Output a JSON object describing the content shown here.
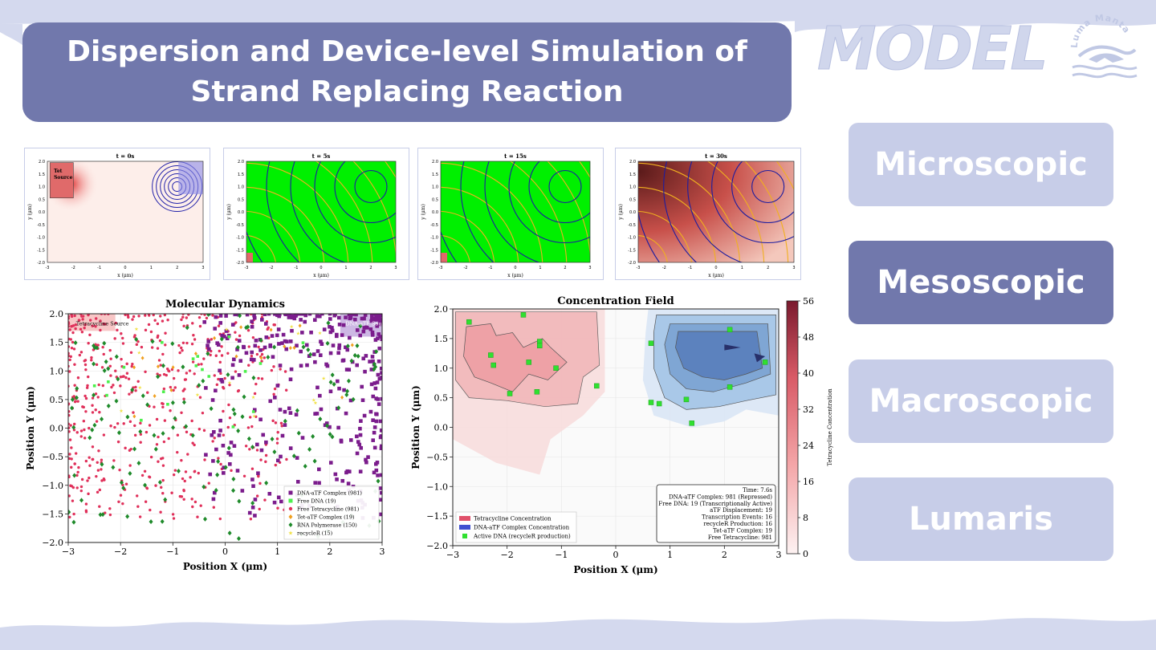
{
  "slide": {
    "title": "Dispersion and Device-level Simulation of Strand Replacing Reaction",
    "brand_word": "MODEL",
    "logo_text": "Luma Manta"
  },
  "nav": [
    {
      "label": "Microscopic",
      "active": false
    },
    {
      "label": "Mesoscopic",
      "active": true
    },
    {
      "label": "Macroscopic",
      "active": false
    },
    {
      "label": "Lumaris",
      "active": false
    }
  ],
  "colors": {
    "accent": "#7178ac",
    "accent_light": "#c7cde8",
    "wave": "#d4d9ee",
    "field_green": "#00f000",
    "contour_blue": "#1c1ca0",
    "contour_orange": "#f0b020"
  },
  "snapshots": [
    {
      "title": "t = 0s",
      "xlabel": "x (μm)",
      "ylabel": "y (μm)",
      "state": "initial",
      "tet_label": "Tet Source"
    },
    {
      "title": "t = 5s",
      "xlabel": "x (μm)",
      "ylabel": "y (μm)",
      "state": "green"
    },
    {
      "title": "t = 15s",
      "xlabel": "x (μm)",
      "ylabel": "y (μm)",
      "state": "green"
    },
    {
      "title": "t = 30s",
      "xlabel": "x (μm)",
      "ylabel": "y (μm)",
      "state": "red"
    }
  ],
  "snapshot_axes": {
    "xticks": [
      "-3",
      "-2",
      "-1",
      "0",
      "1",
      "2",
      "3"
    ],
    "yticks": [
      "2.0",
      "1.5",
      "1.0",
      "0.5",
      "0.0",
      "-0.5",
      "-1.0",
      "-1.5",
      "-2.0"
    ]
  },
  "chart_data": [
    {
      "type": "scatter",
      "title": "Molecular Dynamics",
      "xlabel": "Position X (μm)",
      "ylabel": "Position Y (μm)",
      "xlim": [
        -3,
        3
      ],
      "ylim": [
        -2,
        2
      ],
      "xticks": [
        "−3",
        "−2",
        "−1",
        "0",
        "1",
        "2",
        "3"
      ],
      "yticks": [
        "2.0",
        "1.5",
        "1.0",
        "0.5",
        "0.0",
        "−0.5",
        "−1.0",
        "−1.5",
        "−2.0"
      ],
      "source_labels": [
        "Tetracycline Source",
        "DNA-aTF Source"
      ],
      "legend_position": "bottom-right",
      "series": [
        {
          "name": "DNA-aTF Complex (981)",
          "color": "#7b1c8c",
          "marker": "square",
          "count": 981
        },
        {
          "name": "Free DNA (19)",
          "color": "#4cf04c",
          "marker": "square",
          "count": 19
        },
        {
          "name": "Free Tetracycline (981)",
          "color": "#e0305a",
          "marker": "circle",
          "count": 981
        },
        {
          "name": "Tet-aTF Complex (19)",
          "color": "#f0a020",
          "marker": "diamond",
          "count": 19
        },
        {
          "name": "RNA Polymerase (150)",
          "color": "#1e8a2a",
          "marker": "diamond",
          "count": 150
        },
        {
          "name": "recycleR (15)",
          "color": "#f0e040",
          "marker": "star",
          "count": 15
        }
      ]
    },
    {
      "type": "heatmap",
      "title": "Concentration Field",
      "xlabel": "Position X (μm)",
      "ylabel": "Position Y (μm)",
      "xlim": [
        -3,
        3
      ],
      "ylim": [
        -2,
        2
      ],
      "xticks": [
        "−3",
        "−2",
        "−1",
        "0",
        "1",
        "2",
        "3"
      ],
      "yticks": [
        "2.0",
        "1.5",
        "1.0",
        "0.5",
        "0.0",
        "−0.5",
        "−1.0",
        "−1.5",
        "−2.0"
      ],
      "colorbar": {
        "label": "Tetracycline Concentration",
        "ticks": [
          "56",
          "48",
          "40",
          "32",
          "24",
          "16",
          "8",
          "0"
        ],
        "range": [
          0,
          56
        ]
      },
      "legend": [
        {
          "name": "Tetracycline Concentration",
          "color": "#e0506a"
        },
        {
          "name": "DNA-aTF Complex Concentration",
          "color": "#4050d0"
        },
        {
          "name": "Active DNA (recycleR production)",
          "color": "#30e030"
        }
      ],
      "info_box": [
        "Time: 7.6s",
        "DNA-aTF Complex: 981 (Repressed)",
        "Free DNA: 19 (Transcriptionally Active)",
        "aTF Displacement: 19",
        "Transcription Events: 16",
        "recycleR Production: 16",
        "Tet-aTF Complex: 19",
        "Free Tetracycline: 981"
      ],
      "active_dna_points": [
        {
          "x": -2.7,
          "y": 1.78
        },
        {
          "x": -1.7,
          "y": 1.9
        },
        {
          "x": -2.3,
          "y": 1.22
        },
        {
          "x": -2.25,
          "y": 1.05
        },
        {
          "x": -1.4,
          "y": 1.45
        },
        {
          "x": -1.4,
          "y": 1.38
        },
        {
          "x": -1.6,
          "y": 1.1
        },
        {
          "x": -1.1,
          "y": 1.0
        },
        {
          "x": -1.45,
          "y": 0.6
        },
        {
          "x": -1.95,
          "y": 0.57
        },
        {
          "x": -0.35,
          "y": 0.7
        },
        {
          "x": 0.65,
          "y": 1.42
        },
        {
          "x": 2.1,
          "y": 1.65
        },
        {
          "x": 2.75,
          "y": 1.1
        },
        {
          "x": 2.1,
          "y": 0.68
        },
        {
          "x": 0.65,
          "y": 0.42
        },
        {
          "x": 0.8,
          "y": 0.4
        },
        {
          "x": 1.3,
          "y": 0.47
        },
        {
          "x": 1.4,
          "y": 0.07
        }
      ]
    }
  ]
}
